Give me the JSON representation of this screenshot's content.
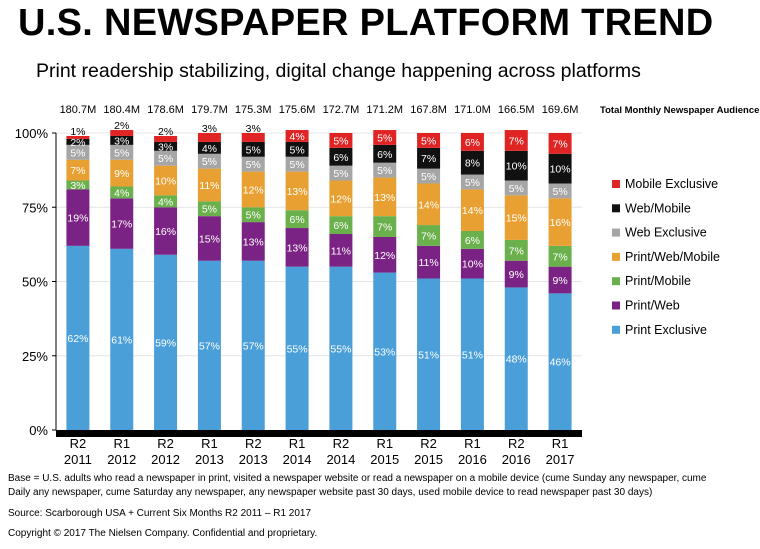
{
  "header": {
    "title": "U.S. NEWSPAPER PLATFORM TREND",
    "subtitle": "Print readership stabilizing, digital change happening across platforms"
  },
  "footer": {
    "base": "Base = U.S. adults who read a newspaper in print, visited a newspaper website or read a newspaper on a mobile device (cume Sunday any newspaper, cume Daily any newspaper, cume Saturday any newspaper, any newspaper website past 30 days, used mobile device to read newspaper past 30 days)",
    "source": "Source: Scarborough USA +  Current Six Months R2 2011 – R1 2017",
    "copyright": "Copyright © 2017 The Nielsen Company. Confidential and proprietary."
  },
  "chart_data": {
    "type": "bar",
    "stacked": true,
    "categories": [
      [
        "R2",
        "2011"
      ],
      [
        "R1",
        "2012"
      ],
      [
        "R2",
        "2012"
      ],
      [
        "R1",
        "2013"
      ],
      [
        "R2",
        "2013"
      ],
      [
        "R1",
        "2014"
      ],
      [
        "R2",
        "2014"
      ],
      [
        "R1",
        "2015"
      ],
      [
        "R2",
        "2015"
      ],
      [
        "R1",
        "2016"
      ],
      [
        "R2",
        "2016"
      ],
      [
        "R1",
        "2017"
      ]
    ],
    "audience_label": "Total Monthly Newspaper Audience",
    "audience": [
      "180.7M",
      "180.4M",
      "178.6M",
      "179.7M",
      "175.3M",
      "175.6M",
      "172.7M",
      "171.2M",
      "167.8M",
      "171.0M",
      "166.5M",
      "169.6M"
    ],
    "y_ticks": [
      "0%",
      "25%",
      "50%",
      "75%",
      "100%"
    ],
    "ylim": [
      0,
      100
    ],
    "legend_position": "right",
    "series": [
      {
        "name": "Print Exclusive",
        "color": "#4a9fd8",
        "label_color": "#ffffff",
        "values": [
          62,
          61,
          59,
          57,
          57,
          55,
          55,
          53,
          51,
          51,
          48,
          46
        ]
      },
      {
        "name": "Print/Web",
        "color": "#7b2384",
        "label_color": "#ffffff",
        "values": [
          19,
          17,
          16,
          15,
          13,
          13,
          11,
          12,
          11,
          10,
          9,
          9
        ]
      },
      {
        "name": "Print/Mobile",
        "color": "#6ab04c",
        "label_color": "#ffffff",
        "values": [
          3,
          4,
          4,
          5,
          5,
          6,
          6,
          7,
          7,
          6,
          7,
          7
        ]
      },
      {
        "name": "Print/Web/Mobile",
        "color": "#e8a032",
        "label_color": "#ffffff",
        "values": [
          7,
          9,
          10,
          11,
          12,
          13,
          12,
          13,
          14,
          14,
          15,
          16
        ]
      },
      {
        "name": "Web Exclusive",
        "color": "#a6a6a6",
        "label_color": "#ffffff",
        "values": [
          5,
          5,
          5,
          5,
          5,
          5,
          5,
          5,
          5,
          5,
          5,
          5
        ]
      },
      {
        "name": "Web/Mobile",
        "color": "#111111",
        "label_color": "#ffffff",
        "values": [
          2,
          3,
          3,
          4,
          5,
          5,
          6,
          6,
          7,
          8,
          10,
          10
        ]
      },
      {
        "name": "Mobile Exclusive",
        "color": "#e02424",
        "label_color": "#ffffff",
        "values": [
          1,
          2,
          2,
          3,
          3,
          4,
          5,
          5,
          5,
          6,
          7,
          7
        ]
      }
    ]
  }
}
